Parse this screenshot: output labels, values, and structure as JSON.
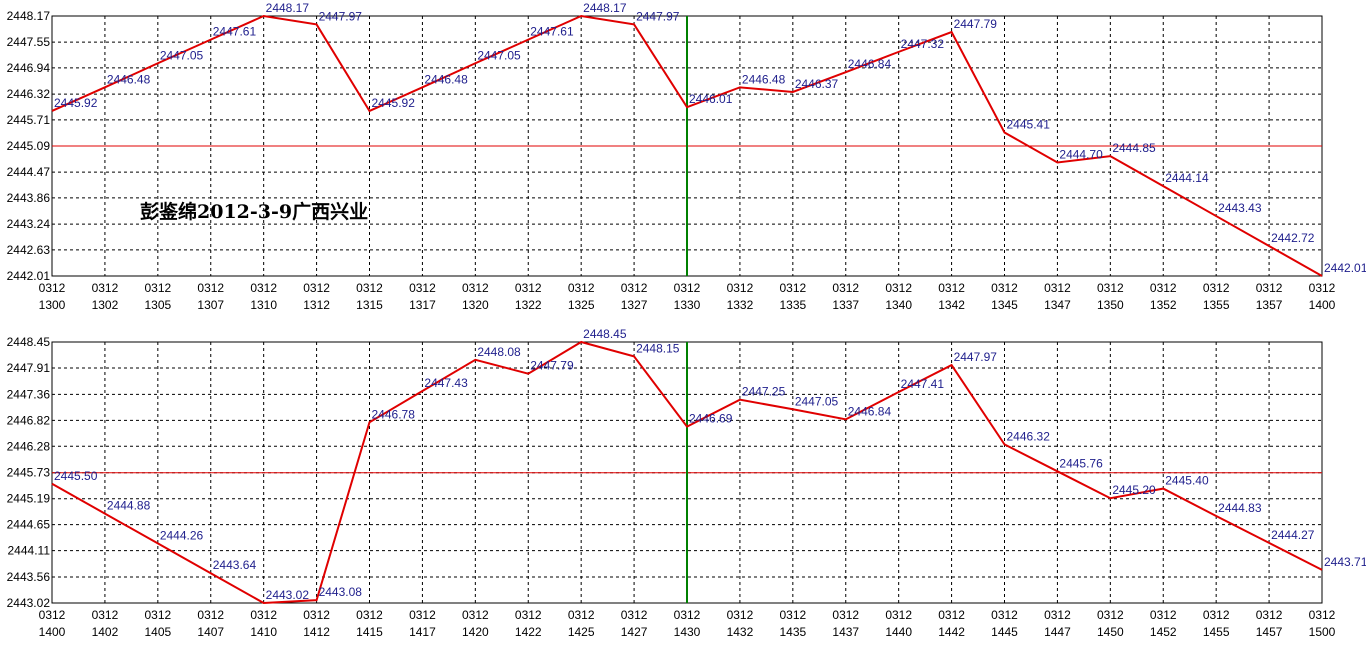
{
  "chart_data": [
    {
      "type": "line",
      "categories": [
        "0312 1300",
        "0312 1302",
        "0312 1305",
        "0312 1307",
        "0312 1310",
        "0312 1312",
        "0312 1315",
        "0312 1317",
        "0312 1320",
        "0312 1322",
        "0312 1325",
        "0312 1327",
        "0312 1330",
        "0312 1332",
        "0312 1335",
        "0312 1337",
        "0312 1340",
        "0312 1342",
        "0312 1345",
        "0312 1347",
        "0312 1350",
        "0312 1352",
        "0312 1355",
        "0312 1357",
        "0312 1400"
      ],
      "values": [
        2445.92,
        2446.48,
        2447.05,
        2447.61,
        2448.17,
        2447.97,
        2445.92,
        2446.48,
        2447.05,
        2447.61,
        2448.17,
        2447.97,
        2446.01,
        2446.48,
        2446.37,
        2446.84,
        2447.32,
        2447.79,
        2445.41,
        2444.7,
        2444.85,
        2444.14,
        2443.43,
        2442.72,
        2442.01
      ],
      "value_labels": [
        "2445.92",
        "2446.48",
        "2447.05",
        "2447.61",
        "2448.17",
        "2447.97",
        "2445.92",
        "2446.48",
        "2447.05",
        "2447.61",
        "2448.17",
        "2447.97",
        "2446.01",
        "2446.48",
        "2446.37",
        "2446.84",
        "2447.32",
        "2447.79",
        "2445.41",
        "2444.70",
        "2444.85",
        "2444.14",
        "2443.43",
        "2442.72",
        "2442.01"
      ],
      "color": "#e00000",
      "ylim": [
        2442.01,
        2448.17
      ],
      "yticks": [
        2448.17,
        2447.55,
        2446.94,
        2446.32,
        2445.71,
        2445.09,
        2444.47,
        2443.86,
        2443.24,
        2442.63,
        2442.01
      ],
      "reference_line": 2445.09,
      "vline_at": "0312 1330",
      "annotation": "彭鉴绵2012-3-9广西兴业",
      "grid": true
    },
    {
      "type": "line",
      "categories": [
        "0312 1400",
        "0312 1402",
        "0312 1405",
        "0312 1407",
        "0312 1410",
        "0312 1412",
        "0312 1415",
        "0312 1417",
        "0312 1420",
        "0312 1422",
        "0312 1425",
        "0312 1427",
        "0312 1430",
        "0312 1432",
        "0312 1435",
        "0312 1437",
        "0312 1440",
        "0312 1442",
        "0312 1445",
        "0312 1447",
        "0312 1450",
        "0312 1452",
        "0312 1455",
        "0312 1457",
        "0312 1500"
      ],
      "values": [
        2445.5,
        2444.88,
        2444.26,
        2443.64,
        2443.02,
        2443.08,
        2446.78,
        2447.43,
        2448.08,
        2447.79,
        2448.45,
        2448.15,
        2446.69,
        2447.25,
        2447.05,
        2446.84,
        2447.41,
        2447.97,
        2446.32,
        2445.76,
        2445.2,
        2445.4,
        2444.83,
        2444.27,
        2443.71
      ],
      "value_labels": [
        "2445.50",
        "2444.88",
        "2444.26",
        "2443.64",
        "2443.02",
        "2443.08",
        "2446.78",
        "2447.43",
        "2448.08",
        "2447.79",
        "2448.45",
        "2448.15",
        "2446.69",
        "2447.25",
        "2447.05",
        "2446.84",
        "2447.41",
        "2447.97",
        "2446.32",
        "2445.76",
        "2445.20",
        "2445.40",
        "2444.83",
        "2444.27",
        "2443.71"
      ],
      "color": "#e00000",
      "ylim": [
        2443.02,
        2448.45
      ],
      "yticks": [
        2448.45,
        2447.91,
        2447.36,
        2446.82,
        2446.28,
        2445.73,
        2445.19,
        2444.65,
        2444.11,
        2443.56,
        2443.02
      ],
      "reference_line": 2445.73,
      "vline_at": "0312 1430",
      "grid": true
    }
  ]
}
